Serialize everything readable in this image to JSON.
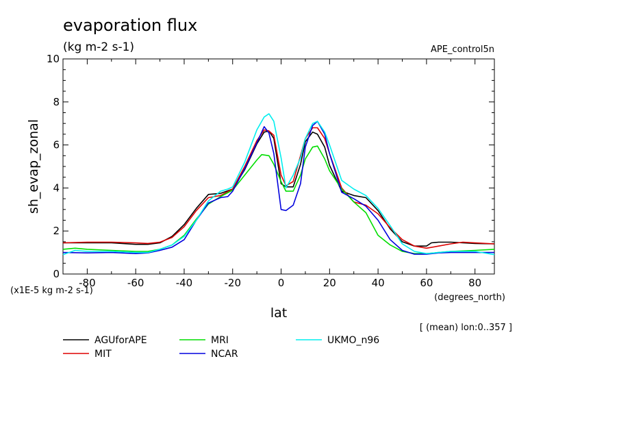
{
  "chart_data": {
    "type": "line",
    "title": "evaporation flux",
    "subtitle": "(kg m-2 s-1)",
    "dataset": "APE_control5n",
    "xlabel": "lat",
    "xunits": "(degrees_north)",
    "ylabel": "sh_evap_zonal",
    "yscale_note": "(x1E-5 kg m-2 s-1)",
    "averaging_note": "[ (mean) lon:0..357 ]",
    "xlim": [
      -90,
      88
    ],
    "ylim": [
      0,
      10
    ],
    "xticks": [
      -80,
      -60,
      -40,
      -20,
      0,
      20,
      40,
      60,
      80
    ],
    "xtick_labels": [
      "-80",
      "-60",
      "-40",
      "-20",
      "0",
      "20",
      "40",
      "60",
      "80"
    ],
    "yticks": [
      0,
      2,
      4,
      6,
      8,
      10
    ],
    "ytick_labels": [
      "0",
      "2",
      "4",
      "6",
      "8",
      "10"
    ],
    "grid": false,
    "legend_position": "bottom",
    "series": [
      {
        "name": "AGUforAPE",
        "color": "#000000",
        "x": [
          -90,
          -80,
          -70,
          -60,
          -55,
          -50,
          -45,
          -40,
          -35,
          -30,
          -25,
          -20,
          -15,
          -10,
          -7,
          -5,
          -3,
          0,
          2,
          5,
          8,
          10,
          13,
          15,
          18,
          20,
          25,
          30,
          35,
          40,
          45,
          50,
          55,
          60,
          62,
          65,
          70,
          80,
          88
        ],
        "y": [
          1.45,
          1.45,
          1.45,
          1.38,
          1.38,
          1.45,
          1.75,
          2.3,
          3.05,
          3.7,
          3.75,
          3.95,
          4.85,
          6.05,
          6.6,
          6.65,
          6.3,
          4.2,
          4.05,
          4.05,
          5.1,
          6.15,
          6.6,
          6.5,
          5.9,
          5.05,
          3.85,
          3.65,
          3.55,
          2.95,
          2.1,
          1.5,
          1.3,
          1.3,
          1.45,
          1.48,
          1.48,
          1.42,
          1.4
        ]
      },
      {
        "name": "MIT",
        "color": "#dd0000",
        "x": [
          -90,
          -80,
          -70,
          -60,
          -55,
          -50,
          -45,
          -40,
          -35,
          -30,
          -25,
          -20,
          -15,
          -10,
          -7,
          -5,
          -3,
          0,
          2,
          5,
          8,
          10,
          13,
          15,
          18,
          20,
          25,
          30,
          35,
          40,
          45,
          50,
          55,
          60,
          65,
          70,
          75,
          80,
          88
        ],
        "y": [
          1.45,
          1.48,
          1.48,
          1.45,
          1.42,
          1.48,
          1.7,
          2.2,
          2.95,
          3.55,
          3.65,
          3.95,
          5.0,
          6.2,
          6.7,
          6.65,
          6.45,
          4.6,
          4.1,
          4.3,
          5.5,
          6.3,
          6.8,
          6.8,
          6.3,
          5.6,
          4.0,
          3.35,
          3.2,
          2.8,
          2.15,
          1.6,
          1.3,
          1.2,
          1.3,
          1.4,
          1.48,
          1.45,
          1.4
        ]
      },
      {
        "name": "MRI",
        "color": "#00dd00",
        "x": [
          -90,
          -85,
          -80,
          -70,
          -60,
          -55,
          -50,
          -45,
          -40,
          -35,
          -30,
          -25,
          -20,
          -15,
          -10,
          -8,
          -5,
          -3,
          0,
          2,
          5,
          8,
          10,
          13,
          15,
          18,
          20,
          25,
          30,
          35,
          40,
          45,
          50,
          55,
          60,
          65,
          70,
          80,
          88
        ],
        "y": [
          1.15,
          1.2,
          1.15,
          1.1,
          1.05,
          1.05,
          1.15,
          1.35,
          1.8,
          2.55,
          3.25,
          3.6,
          3.9,
          4.6,
          5.3,
          5.55,
          5.5,
          5.1,
          4.3,
          3.85,
          3.85,
          4.6,
          5.35,
          5.9,
          5.95,
          5.35,
          4.8,
          3.95,
          3.35,
          2.85,
          1.8,
          1.35,
          1.05,
          0.95,
          0.95,
          1.0,
          1.05,
          1.1,
          1.15
        ]
      },
      {
        "name": "NCAR",
        "color": "#0000dd",
        "x": [
          -90,
          -80,
          -70,
          -60,
          -55,
          -50,
          -45,
          -40,
          -35,
          -30,
          -25,
          -22,
          -20,
          -15,
          -10,
          -7,
          -5,
          -3,
          0,
          2,
          5,
          8,
          10,
          13,
          15,
          18,
          20,
          25,
          30,
          35,
          40,
          45,
          50,
          55,
          60,
          65,
          70,
          80,
          88
        ],
        "y": [
          1.0,
          0.98,
          1.0,
          0.95,
          0.98,
          1.1,
          1.25,
          1.6,
          2.5,
          3.3,
          3.55,
          3.6,
          3.85,
          4.9,
          6.1,
          6.85,
          6.55,
          5.6,
          3.0,
          2.95,
          3.2,
          4.2,
          5.9,
          6.9,
          7.1,
          6.5,
          5.6,
          3.8,
          3.5,
          3.15,
          2.5,
          1.6,
          1.1,
          0.92,
          0.92,
          0.98,
          1.0,
          1.0,
          1.0
        ]
      },
      {
        "name": "UKMO_n96",
        "color": "#00eeee",
        "x": [
          -90,
          -85,
          -80,
          -70,
          -60,
          -55,
          -50,
          -45,
          -40,
          -35,
          -30,
          -25,
          -22,
          -20,
          -15,
          -10,
          -7,
          -5,
          -3,
          0,
          2,
          5,
          8,
          10,
          13,
          15,
          18,
          20,
          25,
          30,
          35,
          40,
          45,
          50,
          55,
          60,
          65,
          70,
          80,
          88
        ],
        "y": [
          0.9,
          1.1,
          1.05,
          1.05,
          1.0,
          1.0,
          1.15,
          1.35,
          1.75,
          2.5,
          3.4,
          3.85,
          3.95,
          4.05,
          5.2,
          6.7,
          7.3,
          7.45,
          7.1,
          5.4,
          4.0,
          4.6,
          5.4,
          6.3,
          7.0,
          7.1,
          6.6,
          6.0,
          4.35,
          3.95,
          3.65,
          3.05,
          2.25,
          1.4,
          1.05,
          0.95,
          1.0,
          1.05,
          1.05,
          0.9
        ]
      }
    ]
  }
}
